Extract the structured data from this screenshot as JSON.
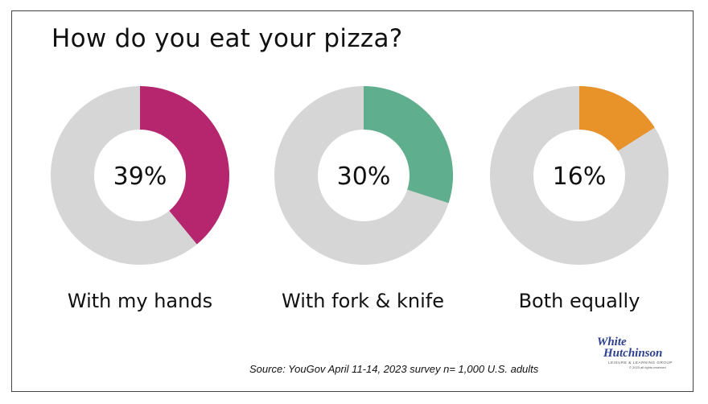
{
  "chart_data": {
    "type": "donut",
    "title": "How do you eat your pizza?",
    "series": [
      {
        "name": "With my hands",
        "value": 39,
        "label": "39%",
        "color": "#b5266f"
      },
      {
        "name": "With fork & knife",
        "value": 30,
        "label": "30%",
        "color": "#5fae8d"
      },
      {
        "name": "Both equally",
        "value": 16,
        "label": "16%",
        "color": "#e8922a"
      }
    ],
    "remainder_color": "#d6d6d6",
    "source": "Source: YouGov April 11-14, 2023 survey n= 1,000 U.S. adults"
  },
  "logo": {
    "line1": "White",
    "line2": "Hutchinson",
    "tagline": "LEISURE & LEARNING GROUP",
    "copyright": "© 2023 all rights reserved"
  }
}
